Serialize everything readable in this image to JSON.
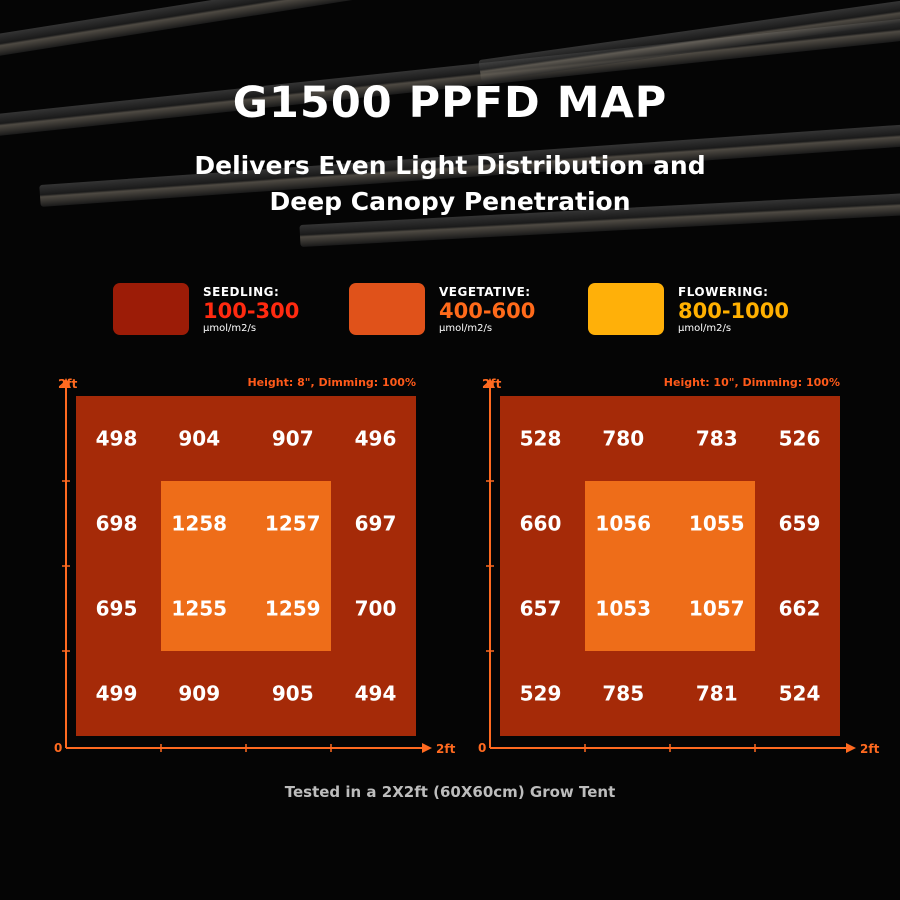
{
  "header": {
    "title": "G1500 PPFD MAP",
    "subtitle_line1": "Delivers Even Light Distribution and",
    "subtitle_line2": "Deep Canopy Penetration"
  },
  "legend": [
    {
      "name": "SEEDLING:",
      "range": "100-300",
      "unit": "μmol/m2/s",
      "swatch_color": "#9c1c07",
      "range_color": "#ff2a10"
    },
    {
      "name": "VEGETATIVE:",
      "range": "400-600",
      "unit": "μmol/m2/s",
      "swatch_color": "#e0521a",
      "range_color": "#ff6a1a"
    },
    {
      "name": "FLOWERING:",
      "range": "800-1000",
      "unit": "μmol/m2/s",
      "swatch_color": "#ffb009",
      "range_color": "#ffb000"
    }
  ],
  "colors": {
    "outer_zone": "#a52a08",
    "inner_zone": "#ee6d19",
    "axis": "#ff6a20",
    "background": "#050505"
  },
  "chart_data": [
    {
      "type": "heatmap",
      "annotation": "Height: 8\", Dimming: 100%",
      "x_axis": {
        "origin_label": "0",
        "end_label": "2ft"
      },
      "y_axis": {
        "origin_label": "0",
        "end_label": "2ft"
      },
      "rows": [
        [
          498,
          904,
          907,
          496
        ],
        [
          698,
          1258,
          1257,
          697
        ],
        [
          695,
          1255,
          1259,
          700
        ],
        [
          499,
          909,
          905,
          494
        ]
      ]
    },
    {
      "type": "heatmap",
      "annotation": "Height: 10\", Dimming: 100%",
      "x_axis": {
        "origin_label": "0",
        "end_label": "2ft"
      },
      "y_axis": {
        "origin_label": "0",
        "end_label": "2ft"
      },
      "rows": [
        [
          528,
          780,
          783,
          526
        ],
        [
          660,
          1056,
          1055,
          659
        ],
        [
          657,
          1053,
          1057,
          662
        ],
        [
          529,
          785,
          781,
          524
        ]
      ]
    }
  ],
  "footnote": "Tested in a 2X2ft (60X60cm) Grow Tent"
}
